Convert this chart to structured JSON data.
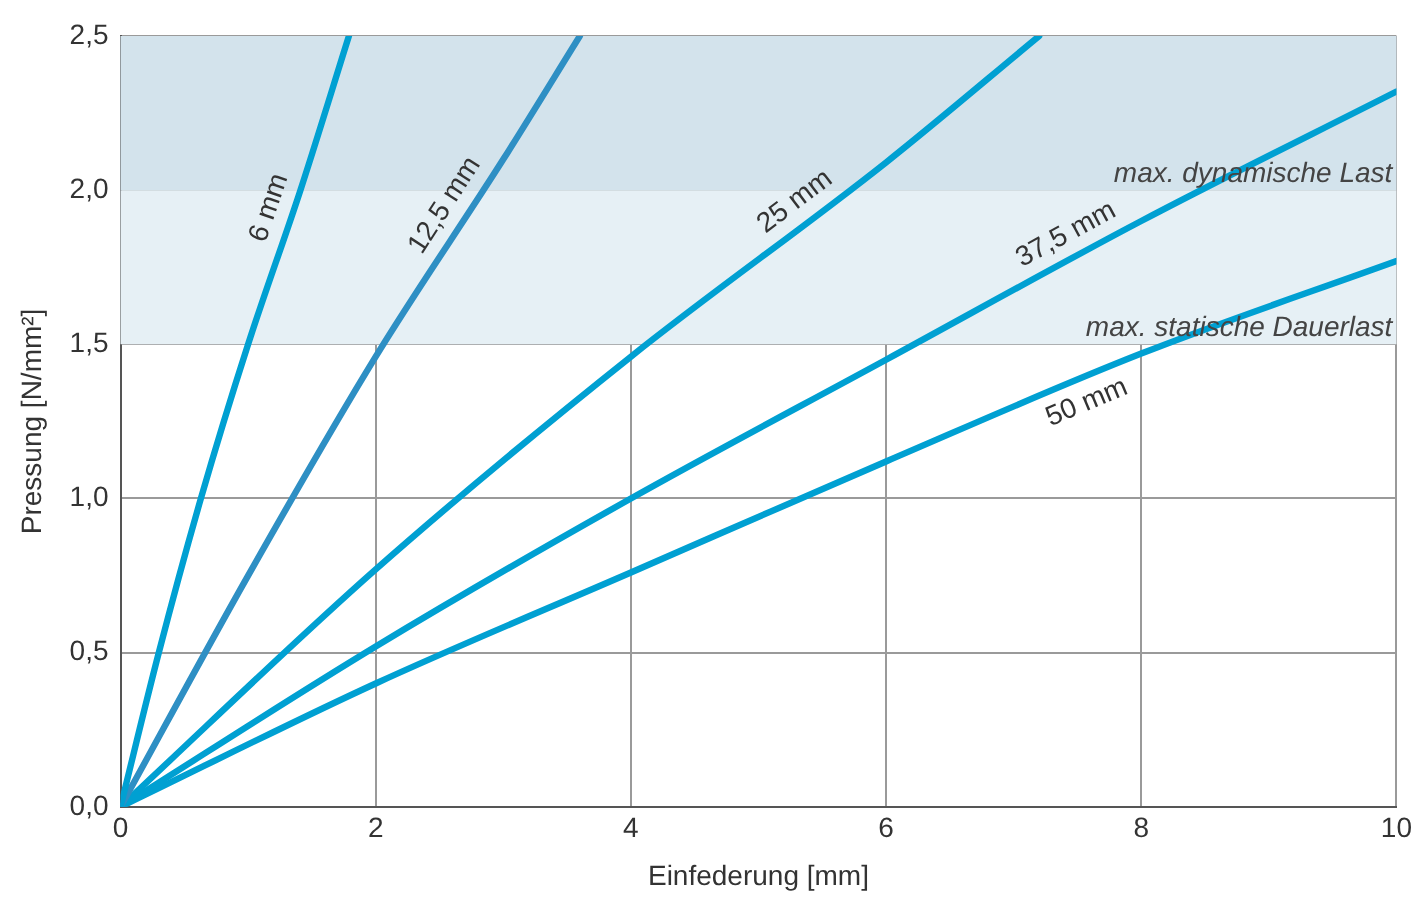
{
  "chart_data": {
    "type": "line",
    "xlabel": "Einfederung [mm]",
    "ylabel": "Pressung [N/mm²]",
    "xlim": [
      0,
      10
    ],
    "xticks": [
      0,
      2,
      4,
      6,
      8,
      10
    ],
    "ylim": [
      0,
      2.5
    ],
    "yticks": [
      {
        "value": 0,
        "label": "0,0"
      },
      {
        "value": 0.5,
        "label": "0,5"
      },
      {
        "value": 1,
        "label": "1,0"
      },
      {
        "value": 1.5,
        "label": "1,5"
      },
      {
        "value": 2,
        "label": "2,0"
      },
      {
        "value": 2.5,
        "label": "2,5"
      }
    ],
    "grid": true,
    "legend": false,
    "marker": "none",
    "line_style": "solid",
    "bands": [
      {
        "axis": "y",
        "from": 1.5,
        "to": 2.0,
        "label": "max. statische Dauerlast",
        "color": "#e6f0f5"
      },
      {
        "axis": "y",
        "from": 2.0,
        "to": 2.5,
        "label": "max. dynamische Last",
        "color": "#d3e3ec"
      }
    ],
    "series": [
      {
        "name": "6 mm",
        "color": "#00a0d2",
        "x": [
          0,
          0.3,
          0.63,
          1.0,
          1.41,
          1.79
        ],
        "values": [
          0,
          0.5,
          1.0,
          1.5,
          2.0,
          2.5
        ]
      },
      {
        "name": "12,5 mm",
        "color": "#2e8fc4",
        "x": [
          0,
          1,
          2,
          3,
          3.6
        ],
        "values": [
          0,
          0.75,
          1.46,
          2.1,
          2.5
        ]
      },
      {
        "name": "25 mm",
        "color": "#00a0d2",
        "x": [
          0,
          2,
          4,
          6,
          7.2
        ],
        "values": [
          0,
          0.77,
          1.46,
          2.09,
          2.5
        ]
      },
      {
        "name": "37,5 mm",
        "color": "#00a0d2",
        "x": [
          0,
          2,
          4,
          6,
          8,
          10
        ],
        "values": [
          0,
          0.52,
          1.0,
          1.45,
          1.9,
          2.32
        ]
      },
      {
        "name": "50 mm",
        "color": "#00a0d2",
        "x": [
          0,
          2,
          4,
          6,
          8,
          10
        ],
        "values": [
          0,
          0.4,
          0.76,
          1.12,
          1.47,
          1.77
        ]
      }
    ]
  }
}
